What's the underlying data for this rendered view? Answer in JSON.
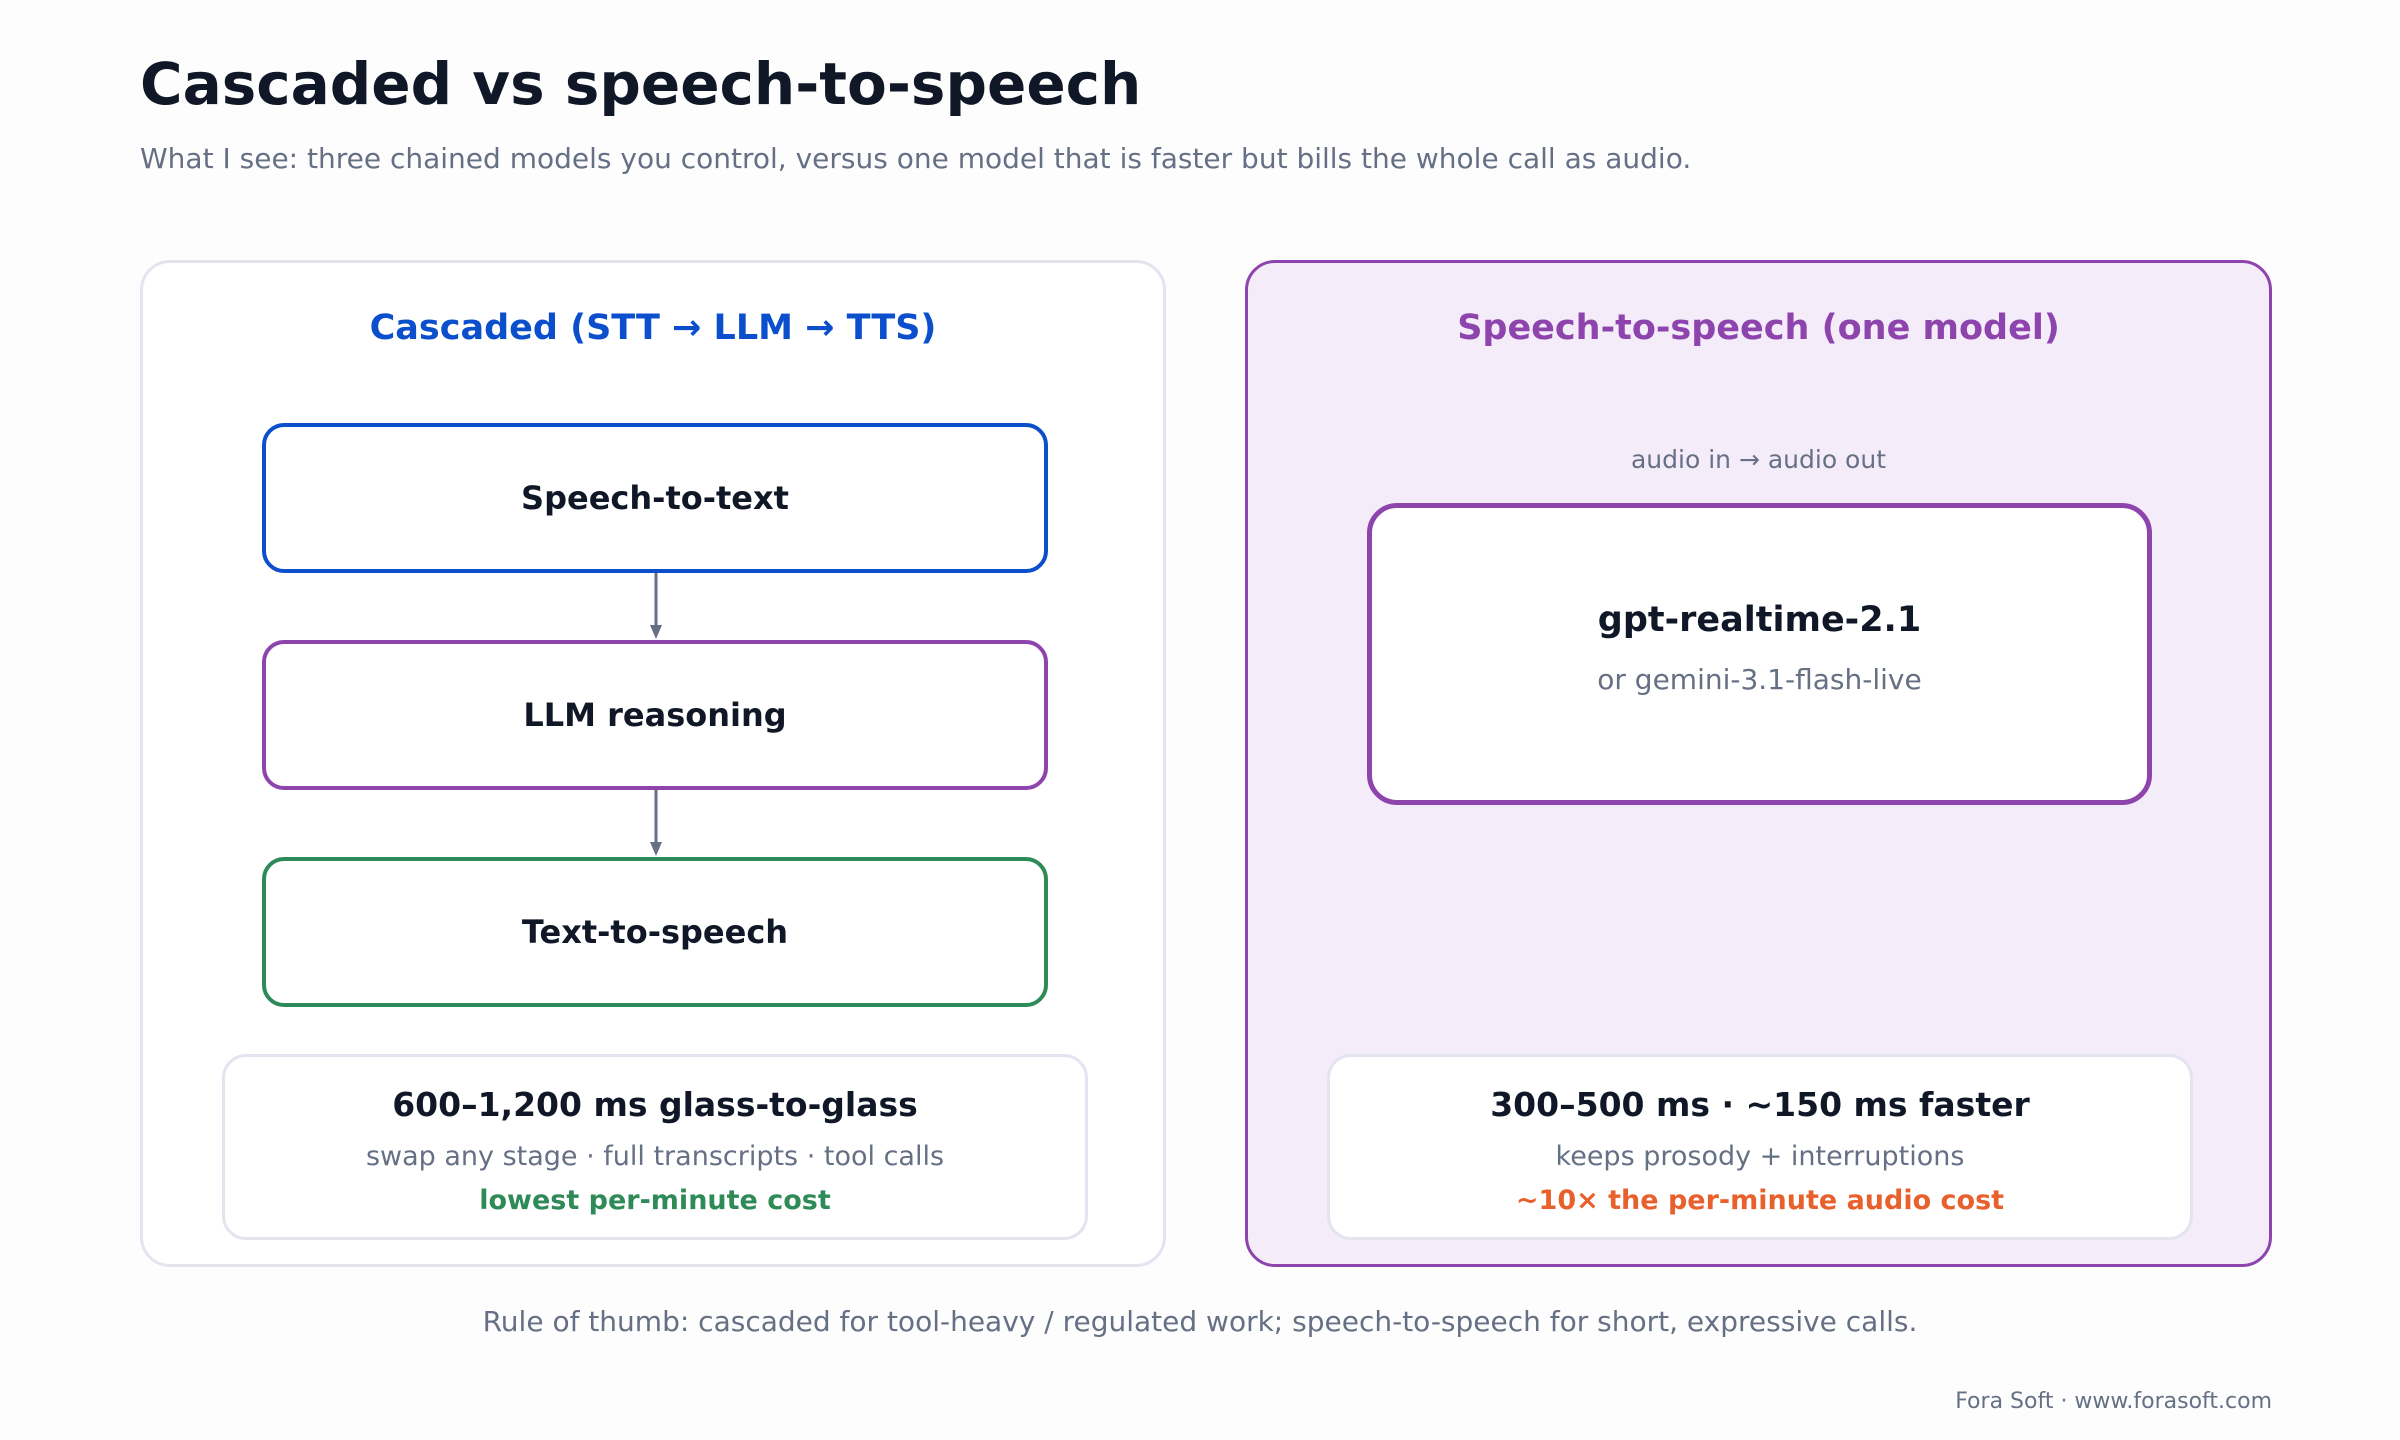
{
  "header": {
    "title": "Cascaded vs speech-to-speech",
    "subtitle": "What I see: three chained models you control, versus one model that is faster but bills the whole call as audio."
  },
  "cascaded": {
    "title": "Cascaded (STT → LLM → TTS)",
    "stages": [
      {
        "label": "Speech-to-text",
        "color": "#0b4fcc"
      },
      {
        "label": "LLM reasoning",
        "color": "#8e44ad"
      },
      {
        "label": "Text-to-speech",
        "color": "#2e8b57"
      }
    ],
    "summary": {
      "latency": "600–1,200 ms glass-to-glass",
      "features": "swap any stage · full transcripts · tool calls",
      "cost_note": "lowest per-minute cost"
    }
  },
  "speech_to_speech": {
    "title": "Speech-to-speech (one model)",
    "caption": "audio in → audio out",
    "model_name": "gpt-realtime-2.1",
    "alt_model": "or gemini-3.1-flash-live",
    "summary": {
      "latency": "300–500 ms · ~150 ms faster",
      "features": "keeps prosody + interruptions",
      "cost_note": "~10× the per-minute audio cost"
    }
  },
  "footer": {
    "rule_of_thumb": "Rule of thumb: cascaded for tool-heavy / regulated work; speech-to-speech for short, expressive calls.",
    "credit": "Fora Soft · www.forasoft.com"
  },
  "colors": {
    "blue": "#0b4fcc",
    "purple": "#8e44ad",
    "green": "#2e8b57",
    "orange": "#e8602c",
    "muted": "#667085",
    "arrow": "#667085"
  }
}
